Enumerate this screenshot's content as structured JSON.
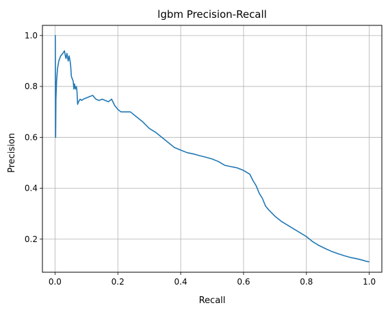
{
  "chart_data": {
    "type": "line",
    "title": "lgbm Precision-Recall",
    "xlabel": "Recall",
    "ylabel": "Precision",
    "xlim": [
      -0.04,
      1.04
    ],
    "ylim": [
      0.07,
      1.04
    ],
    "xticks": [
      0.0,
      0.2,
      0.4,
      0.6,
      0.8,
      1.0
    ],
    "xtick_labels": [
      "0.0",
      "0.2",
      "0.4",
      "0.6",
      "0.8",
      "1.0"
    ],
    "yticks": [
      0.2,
      0.4,
      0.6,
      0.8,
      1.0
    ],
    "ytick_labels": [
      "0.2",
      "0.4",
      "0.6",
      "0.8",
      "1.0"
    ],
    "grid": true,
    "series": [
      {
        "color": "#1f77b4",
        "x": [
          0.0,
          0.001,
          0.002,
          0.003,
          0.005,
          0.008,
          0.012,
          0.018,
          0.025,
          0.03,
          0.033,
          0.035,
          0.038,
          0.042,
          0.045,
          0.048,
          0.05,
          0.052,
          0.055,
          0.058,
          0.06,
          0.062,
          0.065,
          0.068,
          0.07,
          0.072,
          0.075,
          0.08,
          0.085,
          0.09,
          0.1,
          0.11,
          0.12,
          0.13,
          0.14,
          0.15,
          0.16,
          0.17,
          0.18,
          0.19,
          0.2,
          0.21,
          0.22,
          0.24,
          0.26,
          0.28,
          0.3,
          0.32,
          0.34,
          0.36,
          0.38,
          0.4,
          0.42,
          0.44,
          0.46,
          0.48,
          0.5,
          0.52,
          0.54,
          0.56,
          0.58,
          0.6,
          0.62,
          0.63,
          0.64,
          0.65,
          0.66,
          0.67,
          0.68,
          0.7,
          0.72,
          0.74,
          0.76,
          0.78,
          0.8,
          0.82,
          0.84,
          0.86,
          0.88,
          0.9,
          0.92,
          0.94,
          0.96,
          0.98,
          0.99,
          1.0
        ],
        "y": [
          1.0,
          1.0,
          0.6,
          0.75,
          0.82,
          0.87,
          0.9,
          0.92,
          0.93,
          0.94,
          0.92,
          0.91,
          0.93,
          0.9,
          0.92,
          0.9,
          0.88,
          0.84,
          0.83,
          0.82,
          0.79,
          0.81,
          0.79,
          0.8,
          0.78,
          0.73,
          0.74,
          0.75,
          0.745,
          0.75,
          0.755,
          0.76,
          0.765,
          0.75,
          0.745,
          0.75,
          0.745,
          0.74,
          0.75,
          0.725,
          0.71,
          0.7,
          0.7,
          0.7,
          0.68,
          0.66,
          0.635,
          0.62,
          0.6,
          0.58,
          0.56,
          0.55,
          0.54,
          0.535,
          0.528,
          0.522,
          0.515,
          0.505,
          0.49,
          0.485,
          0.48,
          0.47,
          0.455,
          0.43,
          0.41,
          0.38,
          0.36,
          0.33,
          0.315,
          0.29,
          0.27,
          0.255,
          0.24,
          0.225,
          0.21,
          0.19,
          0.175,
          0.163,
          0.152,
          0.143,
          0.135,
          0.128,
          0.123,
          0.117,
          0.113,
          0.111
        ]
      }
    ]
  }
}
